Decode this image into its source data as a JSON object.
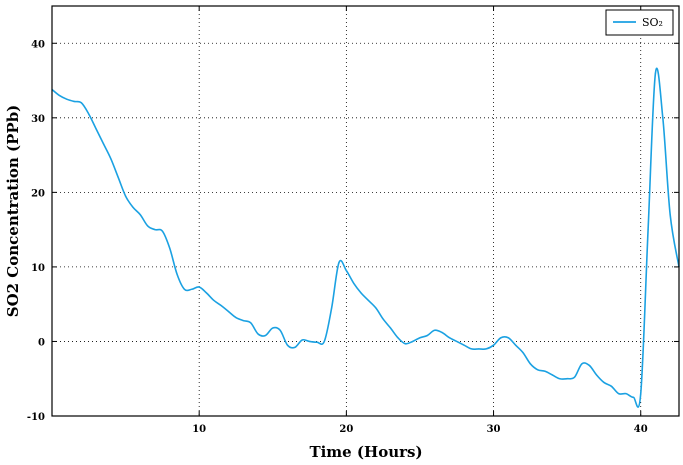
{
  "chart_data": {
    "type": "line",
    "title": "",
    "xlabel": "Time (Hours)",
    "ylabel": "SO2 Concentration (PPb)",
    "xlim": [
      0,
      42.6
    ],
    "ylim": [
      -10,
      45
    ],
    "x_ticks": [
      10,
      20,
      30,
      40
    ],
    "y_ticks": [
      -10,
      0,
      10,
      20,
      30,
      40
    ],
    "x_tick_labels": [
      "10",
      "20",
      "30",
      "40"
    ],
    "y_tick_labels": [
      "-10",
      "0",
      "10",
      "20",
      "30",
      "40"
    ],
    "grid": true,
    "grid_style": "dotted",
    "legend_position": "top-right",
    "series": [
      {
        "name": "SO2",
        "legend_label": "SO₂",
        "color": "#1ba1e2",
        "x": [
          0,
          0.5,
          1,
          1.5,
          2,
          2.5,
          3,
          3.5,
          4,
          4.5,
          5,
          5.5,
          6,
          6.5,
          7,
          7.5,
          8,
          8.5,
          9,
          9.5,
          10,
          10.5,
          11,
          11.5,
          12,
          12.5,
          13,
          13.5,
          14,
          14.5,
          15,
          15.5,
          16,
          16.5,
          17,
          17.5,
          18,
          18.5,
          19,
          19.5,
          20,
          20.5,
          21,
          21.5,
          22,
          22.5,
          23,
          23.5,
          24,
          24.5,
          25,
          25.5,
          26,
          26.5,
          27,
          27.5,
          28,
          28.5,
          29,
          29.5,
          30,
          30.5,
          31,
          31.5,
          32,
          32.5,
          33,
          33.5,
          34,
          34.5,
          35,
          35.5,
          36,
          36.5,
          37,
          37.5,
          38,
          38.5,
          39,
          39.5,
          40,
          40.5,
          41,
          41.5,
          42,
          42.6
        ],
        "values": [
          33.8,
          33.0,
          32.5,
          32.2,
          32.0,
          30.5,
          28.5,
          26.5,
          24.5,
          22.0,
          19.5,
          18.0,
          17.0,
          15.5,
          15.0,
          14.8,
          12.5,
          9.0,
          7.0,
          7.0,
          7.3,
          6.5,
          5.5,
          4.8,
          4.0,
          3.2,
          2.8,
          2.5,
          1.0,
          0.8,
          1.8,
          1.5,
          -0.5,
          -0.8,
          0.2,
          0.0,
          -0.1,
          0.0,
          4.5,
          10.6,
          9.5,
          7.8,
          6.5,
          5.5,
          4.5,
          3.0,
          1.8,
          0.5,
          -0.3,
          0.0,
          0.5,
          0.8,
          1.5,
          1.2,
          0.5,
          0.0,
          -0.5,
          -1.0,
          -1.0,
          -1.0,
          -0.5,
          0.5,
          0.5,
          -0.5,
          -1.5,
          -3.0,
          -3.8,
          -4.0,
          -4.5,
          -5.0,
          -5.0,
          -4.8,
          -3.0,
          -3.2,
          -4.5,
          -5.5,
          -6.0,
          -7.0,
          -7.0,
          -7.5,
          -7.0,
          15.0,
          36.0,
          30.0,
          17.0,
          10.0
        ]
      }
    ]
  }
}
